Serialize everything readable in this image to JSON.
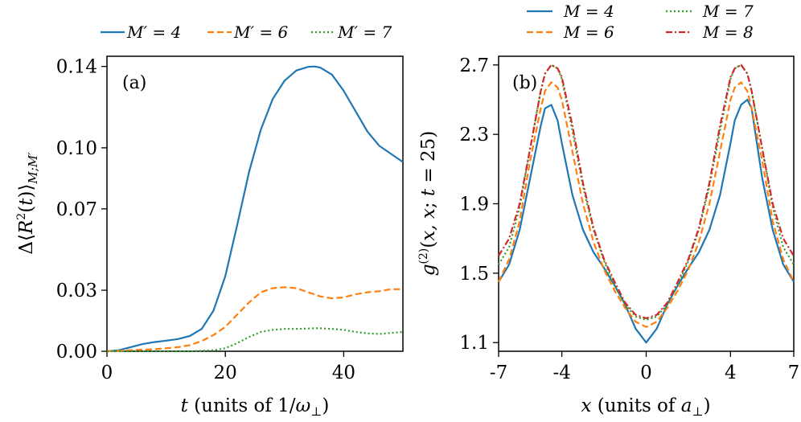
{
  "chart_data": [
    {
      "type": "line",
      "panel_label": "(a)",
      "xlabel": "t (units of 1/ω⊥)",
      "ylabel": "Δ⟨R²(t)⟩M;M′",
      "xlim": [
        0,
        50
      ],
      "ylim": [
        0,
        0.145
      ],
      "xticks": [
        0,
        20,
        40
      ],
      "yticks": [
        0.0,
        0.03,
        0.07,
        0.1,
        0.14
      ],
      "xtick_labels": [
        "0",
        "20",
        "40"
      ],
      "ytick_labels": [
        "0.00",
        "0.03",
        "0.07",
        "0.10",
        "0.14"
      ],
      "legend_position": "top",
      "legend_title_labels": [
        "M′ = 4",
        "M′ = 6",
        "M′ = 7"
      ],
      "x": [
        0,
        2,
        4,
        6,
        8,
        10,
        12,
        14,
        16,
        18,
        20,
        22,
        24,
        26,
        28,
        30,
        32,
        34,
        35,
        36,
        38,
        40,
        42,
        44,
        46,
        48,
        50
      ],
      "series": [
        {
          "name": "M′ = 4",
          "color": "#1f77b4",
          "dash": "solid",
          "values": [
            0,
            0.0005,
            0.002,
            0.0035,
            0.0045,
            0.0052,
            0.006,
            0.0075,
            0.011,
            0.02,
            0.037,
            0.062,
            0.088,
            0.109,
            0.124,
            0.133,
            0.138,
            0.1398,
            0.14,
            0.1395,
            0.136,
            0.128,
            0.118,
            0.108,
            0.101,
            0.097,
            0.093
          ]
        },
        {
          "name": "M′ = 6",
          "color": "#ff7f0e",
          "dash": "dashed",
          "values": [
            0,
            0.0002,
            0.0005,
            0.0008,
            0.001,
            0.0015,
            0.002,
            0.003,
            0.005,
            0.008,
            0.012,
            0.018,
            0.024,
            0.029,
            0.031,
            0.0315,
            0.031,
            0.029,
            0.028,
            0.027,
            0.026,
            0.0265,
            0.028,
            0.029,
            0.0295,
            0.0305,
            0.0305
          ]
        },
        {
          "name": "M′ = 7",
          "color": "#2ca02c",
          "dash": "dotted",
          "values": [
            0,
            0,
            0,
            0,
            0,
            0,
            0,
            0,
            0.0002,
            0.0005,
            0.0015,
            0.004,
            0.007,
            0.0095,
            0.0105,
            0.011,
            0.011,
            0.0112,
            0.0113,
            0.0113,
            0.011,
            0.0105,
            0.0095,
            0.0088,
            0.0085,
            0.009,
            0.0095
          ]
        }
      ]
    },
    {
      "type": "line",
      "panel_label": "(b)",
      "xlabel": "x (units of a⊥)",
      "ylabel": "g⁽²⁾(x, x; t = 25)",
      "xlim": [
        -7,
        7
      ],
      "ylim": [
        1.05,
        2.75
      ],
      "xticks": [
        -7,
        -4,
        0,
        4,
        7
      ],
      "yticks": [
        1.1,
        1.5,
        1.9,
        2.3,
        2.7
      ],
      "xtick_labels": [
        "-7",
        "-4",
        "0",
        "4",
        "7"
      ],
      "ytick_labels": [
        "1.1",
        "1.5",
        "1.9",
        "2.3",
        "2.7"
      ],
      "legend_position": "top",
      "legend_labels": [
        "M = 4",
        "M = 6",
        "M = 7",
        "M = 8"
      ],
      "x": [
        -7,
        -6.5,
        -6,
        -5.5,
        -5,
        -4.8,
        -4.5,
        -4.2,
        -4,
        -3.5,
        -3,
        -2.5,
        -2,
        -1.5,
        -1,
        -0.5,
        0,
        0.5,
        1,
        1.5,
        2,
        2.5,
        3,
        3.5,
        4,
        4.2,
        4.5,
        4.8,
        5,
        5.5,
        6,
        6.5,
        7
      ],
      "series": [
        {
          "name": "M = 4",
          "color": "#1f77b4",
          "dash": "solid",
          "values": [
            1.45,
            1.55,
            1.75,
            2.05,
            2.35,
            2.45,
            2.47,
            2.38,
            2.25,
            1.95,
            1.75,
            1.62,
            1.53,
            1.43,
            1.32,
            1.18,
            1.1,
            1.18,
            1.32,
            1.43,
            1.53,
            1.62,
            1.75,
            1.95,
            2.25,
            2.38,
            2.47,
            2.5,
            2.45,
            2.05,
            1.75,
            1.55,
            1.45
          ]
        },
        {
          "name": "M = 6",
          "color": "#ff7f0e",
          "dash": "dashed",
          "values": [
            1.45,
            1.58,
            1.8,
            2.15,
            2.45,
            2.55,
            2.6,
            2.57,
            2.5,
            2.2,
            1.9,
            1.68,
            1.52,
            1.4,
            1.3,
            1.22,
            1.19,
            1.22,
            1.3,
            1.4,
            1.52,
            1.68,
            1.9,
            2.2,
            2.5,
            2.57,
            2.6,
            2.55,
            2.45,
            2.15,
            1.8,
            1.58,
            1.45
          ]
        },
        {
          "name": "M = 7",
          "color": "#2ca02c",
          "dash": "dotted",
          "values": [
            1.55,
            1.65,
            1.88,
            2.22,
            2.55,
            2.65,
            2.7,
            2.68,
            2.62,
            2.32,
            2.0,
            1.75,
            1.57,
            1.43,
            1.32,
            1.25,
            1.23,
            1.25,
            1.32,
            1.43,
            1.57,
            1.75,
            2.0,
            2.32,
            2.62,
            2.68,
            2.7,
            2.65,
            2.55,
            2.22,
            1.88,
            1.65,
            1.55
          ]
        },
        {
          "name": "M = 8",
          "color": "#d62728",
          "dash": "dashdot",
          "values": [
            1.6,
            1.7,
            1.9,
            2.22,
            2.55,
            2.65,
            2.7,
            2.68,
            2.63,
            2.35,
            2.02,
            1.76,
            1.58,
            1.45,
            1.33,
            1.26,
            1.24,
            1.26,
            1.33,
            1.45,
            1.58,
            1.76,
            2.02,
            2.35,
            2.63,
            2.68,
            2.7,
            2.65,
            2.55,
            2.22,
            1.9,
            1.7,
            1.6
          ]
        }
      ]
    }
  ]
}
